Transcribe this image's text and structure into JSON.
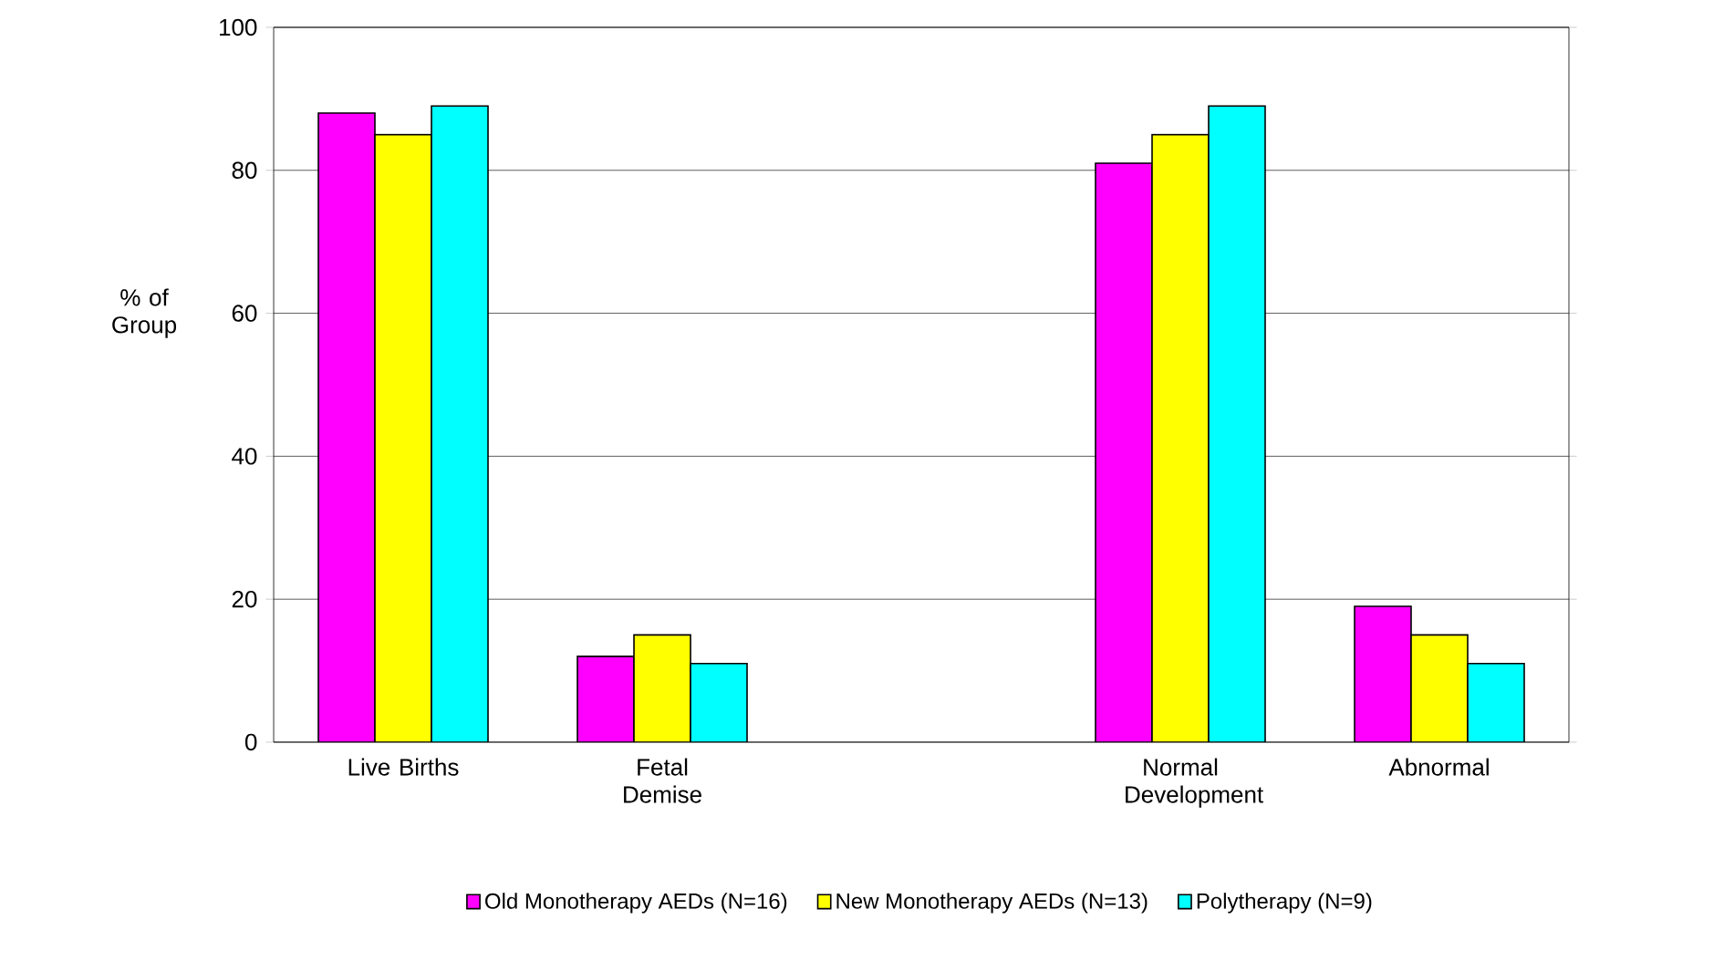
{
  "chart_data": {
    "type": "bar",
    "ylabel": "% of Group",
    "categories": [
      "Live Births",
      "Fetal Demise",
      null,
      "Normal Development",
      "Abnormal"
    ],
    "series": [
      {
        "name": "Old Monotherapy AEDs (N=16)",
        "color": "#ff00ff",
        "values": [
          88,
          12,
          null,
          81,
          19
        ]
      },
      {
        "name": "New Monotherapy AEDs (N=13)",
        "color": "#ffff00",
        "values": [
          85,
          15,
          null,
          85,
          15
        ]
      },
      {
        "name": "Polytherapy (N=9)",
        "color": "#00ffff",
        "values": [
          89,
          11,
          null,
          89,
          11
        ]
      }
    ],
    "ylim": [
      0,
      100
    ],
    "yticks": [
      0,
      20,
      40,
      60,
      80,
      100
    ],
    "grid": "y",
    "legend": "bottom"
  }
}
